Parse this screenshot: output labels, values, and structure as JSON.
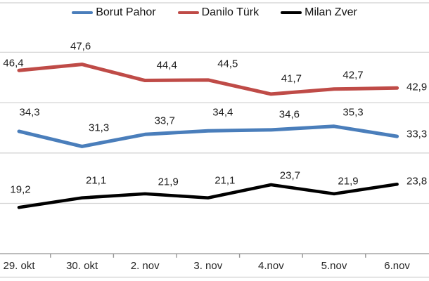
{
  "chart_data": {
    "type": "line",
    "title": "",
    "xlabel": "",
    "ylabel": "",
    "categories": [
      "29. okt",
      "30. okt",
      "2. nov",
      "3. nov",
      "4.nov",
      "5.nov",
      "6.nov"
    ],
    "series": [
      {
        "name": "Borut Pahor",
        "color": "#4a7ebb",
        "values": [
          34.3,
          31.3,
          33.7,
          34.4,
          34.6,
          35.3,
          33.3
        ],
        "labels": [
          "34,3",
          "31,3",
          "33,7",
          "34,4",
          "34,6",
          "35,3",
          "33,3"
        ]
      },
      {
        "name": "Danilo Türk",
        "color": "#bf4b47",
        "values": [
          46.4,
          47.6,
          44.4,
          44.5,
          41.7,
          42.7,
          42.9
        ],
        "labels": [
          "46,4",
          "47,6",
          "44,4",
          "44,5",
          "41,7",
          "42,7",
          "42,9"
        ]
      },
      {
        "name": "Milan Zver",
        "color": "#000000",
        "values": [
          19.2,
          21.1,
          21.9,
          21.1,
          23.7,
          21.9,
          23.8
        ],
        "labels": [
          "19,2",
          "21,1",
          "21,9",
          "21,1",
          "23,7",
          "21,9",
          "23,8"
        ]
      }
    ],
    "ylim": [
      10,
      60
    ],
    "gridline_values": [
      20,
      30,
      40,
      50
    ],
    "grid": true,
    "legend_position": "top",
    "decimal_separator": ","
  },
  "colors": {
    "gridline": "#d4d4d4",
    "chart_border": "#d0d0d0",
    "axis_line": "#969696",
    "label_text": "#1b1b1b"
  }
}
